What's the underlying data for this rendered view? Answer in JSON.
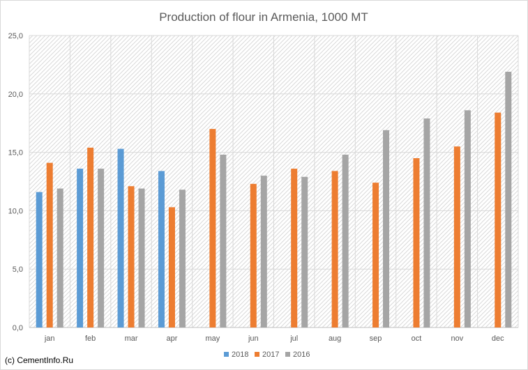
{
  "credit": "(c) CementInfo.Ru",
  "chart_data": {
    "type": "bar",
    "title": "Production of flour in Armenia, 1000 MT",
    "xlabel": "",
    "ylabel": "",
    "categories": [
      "jan",
      "feb",
      "mar",
      "apr",
      "may",
      "jun",
      "jul",
      "aug",
      "sep",
      "oct",
      "nov",
      "dec"
    ],
    "series": [
      {
        "name": "2018",
        "color": "#5b9bd5",
        "values": [
          11.6,
          13.6,
          15.3,
          13.4,
          null,
          null,
          null,
          null,
          null,
          null,
          null,
          null
        ]
      },
      {
        "name": "2017",
        "color": "#ed7d31",
        "values": [
          14.1,
          15.4,
          12.1,
          10.3,
          17.0,
          12.3,
          13.6,
          13.4,
          12.4,
          14.5,
          15.5,
          18.4
        ]
      },
      {
        "name": "2016",
        "color": "#a5a5a5",
        "values": [
          11.9,
          13.6,
          11.9,
          11.8,
          14.8,
          13.0,
          12.9,
          14.8,
          16.9,
          17.9,
          18.6,
          21.9
        ]
      }
    ],
    "ylim": [
      0,
      25
    ],
    "yticks": [
      "0,0",
      "5,0",
      "10,0",
      "15,0",
      "20,0",
      "25,0"
    ],
    "grid": true,
    "legend_position": "bottom"
  }
}
